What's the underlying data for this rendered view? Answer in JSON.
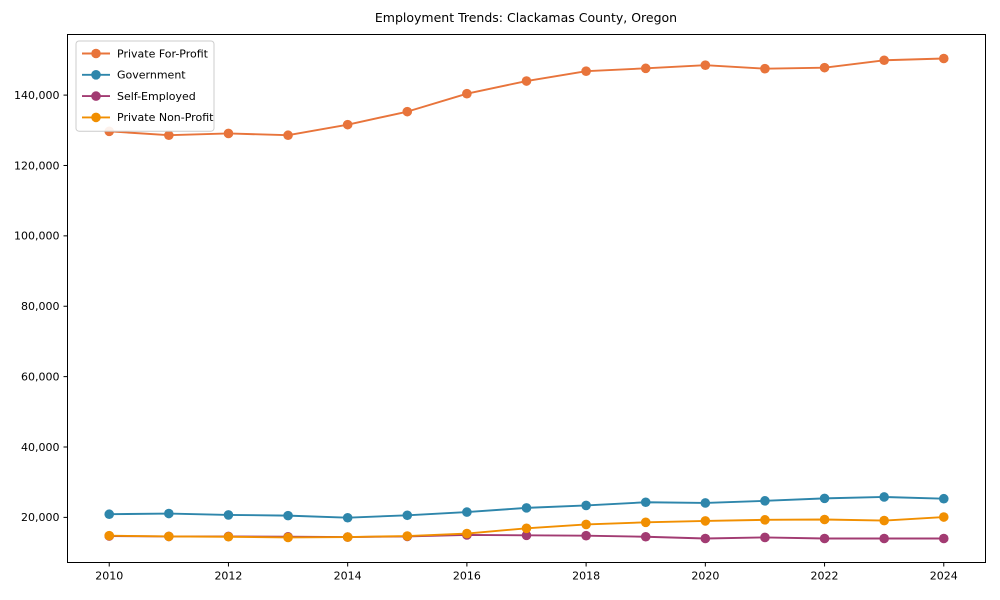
{
  "title": "Employment Trends: Clackamas County, Oregon",
  "colors": {
    "background": "#ffffff",
    "spine": "#000000",
    "tick_text": "#000000",
    "legend_border": "#cccccc",
    "legend_background": "#ffffff"
  },
  "chart_data": {
    "type": "line",
    "title": "Employment Trends: Clackamas County, Oregon",
    "xlabel": "",
    "ylabel": "",
    "x": [
      2010,
      2011,
      2012,
      2013,
      2014,
      2015,
      2016,
      2017,
      2018,
      2019,
      2020,
      2021,
      2022,
      2023,
      2024
    ],
    "series": [
      {
        "name": "Private For-Profit",
        "color": "#E8743B",
        "values": [
          129700,
          128600,
          129100,
          128600,
          131600,
          135300,
          140400,
          144000,
          146800,
          147600,
          148500,
          147500,
          147800,
          149900,
          150400
        ]
      },
      {
        "name": "Government",
        "color": "#2E86AB",
        "values": [
          20900,
          21100,
          20700,
          20500,
          19900,
          20600,
          21500,
          22700,
          23400,
          24300,
          24100,
          24700,
          25400,
          25800,
          25300
        ]
      },
      {
        "name": "Self-Employed",
        "color": "#A23B72",
        "values": [
          14700,
          14600,
          14600,
          14500,
          14400,
          14600,
          15000,
          14900,
          14800,
          14500,
          14000,
          14300,
          14000,
          14000,
          14000
        ]
      },
      {
        "name": "Private Non-Profit",
        "color": "#F18F01",
        "values": [
          14800,
          14600,
          14500,
          14300,
          14400,
          14700,
          15400,
          16900,
          18000,
          18600,
          19000,
          19300,
          19400,
          19100,
          20100
        ]
      }
    ],
    "xlim": [
      2009.3,
      2024.7
    ],
    "ylim": [
      7180,
      157220
    ],
    "xticks": [
      2010,
      2012,
      2014,
      2016,
      2018,
      2020,
      2022,
      2024
    ],
    "yticks": [
      20000,
      40000,
      60000,
      80000,
      100000,
      120000,
      140000
    ],
    "grid": false,
    "legend_position": "upper left",
    "marker": "o",
    "marker_radius": 4.8,
    "line_width": 1.9
  }
}
